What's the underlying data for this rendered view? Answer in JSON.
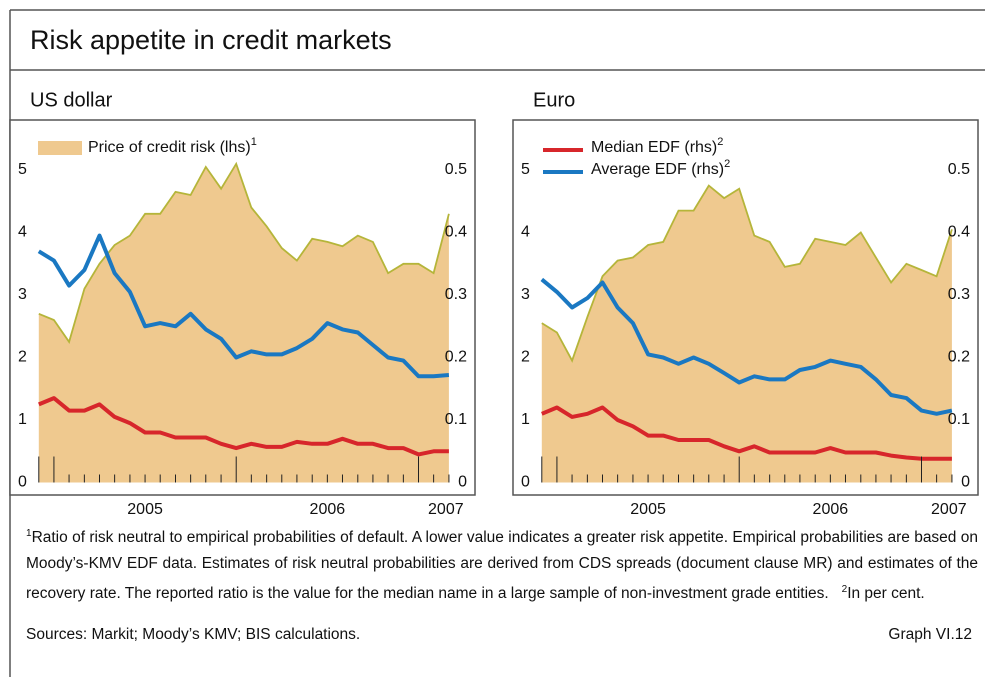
{
  "title": "Risk appetite in credit markets",
  "chart_data": [
    {
      "type": "line",
      "title": "US dollar",
      "x": [
        2004.917,
        2005.0,
        2005.083,
        2005.167,
        2005.25,
        2005.333,
        2005.417,
        2005.5,
        2005.583,
        2005.667,
        2005.75,
        2005.833,
        2005.917,
        2006.0,
        2006.083,
        2006.167,
        2006.25,
        2006.333,
        2006.417,
        2006.5,
        2006.583,
        2006.667,
        2006.75,
        2006.833,
        2006.917,
        2007.0,
        2007.083,
        2007.167
      ],
      "xlim": [
        2004.77,
        2007.31
      ],
      "xticks": [
        {
          "value": 2005.5,
          "label": "2005"
        },
        {
          "value": 2006.5,
          "label": "2006"
        },
        {
          "value": 2007.15,
          "label": "2007"
        }
      ],
      "ylim": [
        -0.2,
        5.8
      ],
      "yticks": [
        0,
        1,
        2,
        3,
        4,
        5
      ],
      "y2lim": [
        -0.02,
        0.58
      ],
      "y2ticks": [
        0,
        0.1,
        0.2,
        0.3,
        0.4,
        0.5
      ],
      "series": [
        {
          "name": "Price of credit risk (lhs)",
          "note": "1",
          "style": "area",
          "color": "#efc98f",
          "line_color": "#b5b53a",
          "legend": true,
          "values": [
            2.7,
            2.6,
            2.25,
            3.1,
            3.5,
            3.8,
            3.95,
            4.3,
            4.3,
            4.65,
            4.6,
            5.05,
            4.7,
            5.1,
            4.4,
            4.1,
            3.75,
            3.55,
            3.9,
            3.85,
            3.78,
            3.95,
            3.85,
            3.35,
            3.5,
            3.5,
            3.35,
            4.3
          ]
        },
        {
          "name": "Median EDF (rhs)",
          "note": "2",
          "style": "line",
          "color": "#d7262b",
          "axis": "y2",
          "legend": false,
          "values": [
            0.125,
            0.135,
            0.115,
            0.115,
            0.125,
            0.105,
            0.095,
            0.08,
            0.08,
            0.072,
            0.072,
            0.072,
            0.062,
            0.055,
            0.062,
            0.057,
            0.057,
            0.065,
            0.062,
            0.062,
            0.07,
            0.062,
            0.062,
            0.055,
            0.055,
            0.045,
            0.05,
            0.05
          ]
        },
        {
          "name": "Average EDF (rhs)",
          "note": "2",
          "style": "line",
          "color": "#1a78c2",
          "axis": "y2",
          "legend": false,
          "values": [
            0.37,
            0.355,
            0.315,
            0.34,
            0.395,
            0.335,
            0.305,
            0.25,
            0.255,
            0.25,
            0.27,
            0.245,
            0.23,
            0.2,
            0.21,
            0.205,
            0.205,
            0.215,
            0.23,
            0.255,
            0.245,
            0.24,
            0.22,
            0.2,
            0.195,
            0.17,
            0.17,
            0.172
          ]
        }
      ]
    },
    {
      "type": "line",
      "title": "Euro",
      "x": [
        2004.917,
        2005.0,
        2005.083,
        2005.167,
        2005.25,
        2005.333,
        2005.417,
        2005.5,
        2005.583,
        2005.667,
        2005.75,
        2005.833,
        2005.917,
        2006.0,
        2006.083,
        2006.167,
        2006.25,
        2006.333,
        2006.417,
        2006.5,
        2006.583,
        2006.667,
        2006.75,
        2006.833,
        2006.917,
        2007.0,
        2007.083,
        2007.167
      ],
      "xlim": [
        2004.77,
        2007.31
      ],
      "xticks": [
        {
          "value": 2005.5,
          "label": "2005"
        },
        {
          "value": 2006.5,
          "label": "2006"
        },
        {
          "value": 2007.15,
          "label": "2007"
        }
      ],
      "ylim": [
        -0.2,
        5.8
      ],
      "yticks": [
        0,
        1,
        2,
        3,
        4,
        5
      ],
      "y2lim": [
        -0.02,
        0.58
      ],
      "y2ticks": [
        0,
        0.1,
        0.2,
        0.3,
        0.4,
        0.5
      ],
      "series": [
        {
          "name": "Price of credit risk (lhs)",
          "note": "1",
          "style": "area",
          "color": "#efc98f",
          "line_color": "#b5b53a",
          "legend": false,
          "values": [
            2.55,
            2.4,
            1.95,
            2.65,
            3.3,
            3.55,
            3.6,
            3.8,
            3.85,
            4.35,
            4.35,
            4.75,
            4.55,
            4.7,
            3.95,
            3.85,
            3.45,
            3.5,
            3.9,
            3.85,
            3.8,
            4.0,
            3.6,
            3.2,
            3.5,
            3.4,
            3.3,
            4.05
          ]
        },
        {
          "name": "Median EDF (rhs)",
          "note": "2",
          "style": "line",
          "color": "#d7262b",
          "axis": "y2",
          "legend": true,
          "values": [
            0.11,
            0.12,
            0.105,
            0.11,
            0.12,
            0.1,
            0.09,
            0.075,
            0.075,
            0.068,
            0.068,
            0.068,
            0.058,
            0.05,
            0.058,
            0.048,
            0.048,
            0.048,
            0.048,
            0.055,
            0.048,
            0.048,
            0.048,
            0.043,
            0.04,
            0.038,
            0.038,
            0.038
          ]
        },
        {
          "name": "Average EDF (rhs)",
          "note": "2",
          "style": "line",
          "color": "#1a78c2",
          "axis": "y2",
          "legend": true,
          "values": [
            0.325,
            0.305,
            0.28,
            0.295,
            0.32,
            0.28,
            0.255,
            0.205,
            0.2,
            0.19,
            0.2,
            0.19,
            0.175,
            0.16,
            0.17,
            0.165,
            0.165,
            0.18,
            0.185,
            0.195,
            0.19,
            0.185,
            0.165,
            0.14,
            0.135,
            0.115,
            0.11,
            0.115
          ]
        }
      ]
    }
  ],
  "footnotes": [
    {
      "marker": "1",
      "text": "Ratio of risk neutral to empirical probabilities of default. A lower value indicates a greater risk appetite. Empirical probabilities are based on Moody’s-KMV EDF data. Estimates of risk neutral probabilities are derived from CDS spreads (document clause MR) and estimates of the recovery rate. The reported ratio is the value for the median name in a large sample of non-investment grade entities."
    },
    {
      "marker": "2",
      "text": "In per cent."
    }
  ],
  "sources": "Sources: Markit; Moody’s KMV; BIS calculations.",
  "graph_id": "Graph VI.12"
}
